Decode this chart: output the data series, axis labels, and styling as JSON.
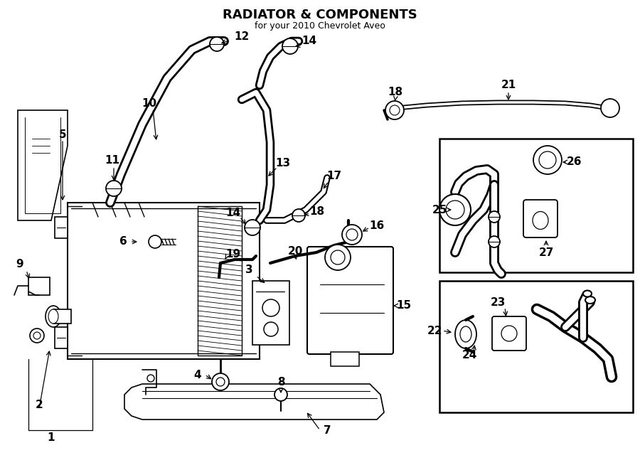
{
  "title": "RADIATOR & COMPONENTS",
  "subtitle": "for your 2010 Chevrolet Aveo",
  "bg_color": "#ffffff",
  "line_color": "#000000",
  "fig_width": 9.0,
  "fig_height": 6.61,
  "dpi": 100
}
